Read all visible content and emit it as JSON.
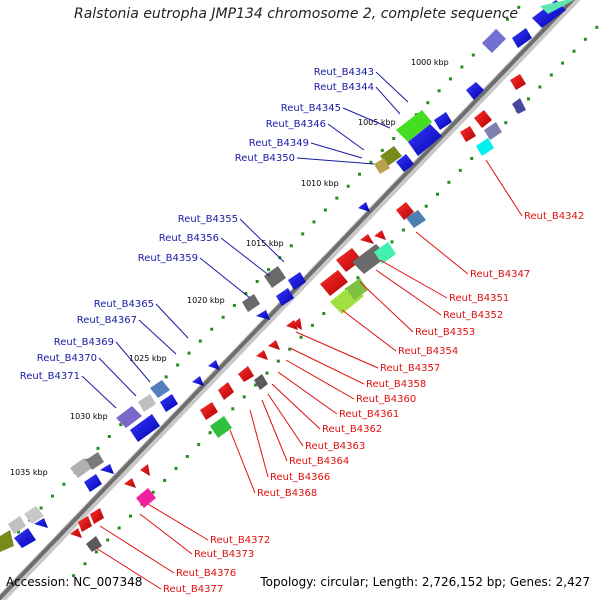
{
  "header": {
    "title": "Ralstonia eutropha JMP134 chromosome 2, complete sequence"
  },
  "footer": {
    "accession": "Accession: NC_007348",
    "topology": "Topology: circular; Length: 2,726,152 bp; Genes: 2,427"
  },
  "ticks": [
    "1000 kbp",
    "1005 kbp",
    "1010 kbp",
    "1015 kbp",
    "1020 kbp",
    "1025 kbp",
    "1030 kbp",
    "1035 kbp"
  ],
  "forward_genes": [
    "Reut_B4343",
    "Reut_B4344",
    "Reut_B4345",
    "Reut_B4346",
    "Reut_B4349",
    "Reut_B4350",
    "Reut_B4355",
    "Reut_B4356",
    "Reut_B4359",
    "Reut_B4365",
    "Reut_B4367",
    "Reut_B4369",
    "Reut_B4370",
    "Reut_B4371"
  ],
  "reverse_genes": [
    "Reut_B4342",
    "Reut_B4347",
    "Reut_B4351",
    "Reut_B4352",
    "Reut_B4353",
    "Reut_B4354",
    "Reut_B4357",
    "Reut_B4358",
    "Reut_B4360",
    "Reut_B4361",
    "Reut_B4362",
    "Reut_B4363",
    "Reut_B4364",
    "Reut_B4366",
    "Reut_B4368",
    "Reut_B4372",
    "Reut_B4373",
    "Reut_B4376",
    "Reut_B4377"
  ],
  "colors": {
    "forward_label": "#1a1aa6",
    "reverse_label": "#e01010",
    "backbone": "#808080",
    "tick_dot": "#1f8f1f"
  }
}
